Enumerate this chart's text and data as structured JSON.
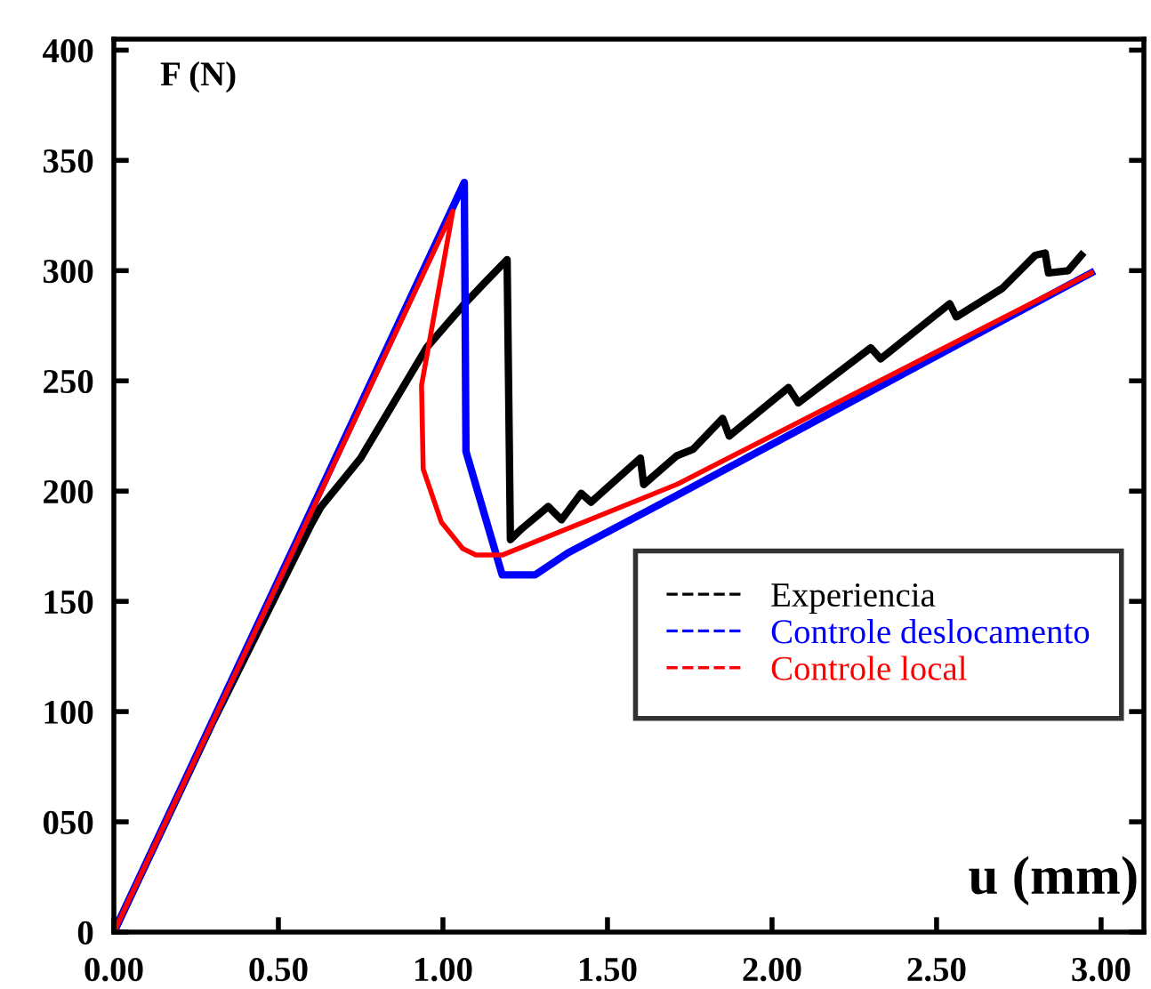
{
  "chart_data": {
    "type": "line",
    "xlabel": "u (mm)",
    "ylabel": "F (N)",
    "xlim": [
      0,
      3.13
    ],
    "ylim": [
      0,
      405
    ],
    "xticks": [
      {
        "value": 0,
        "label": "0.00"
      },
      {
        "value": 0.5,
        "label": "0.50"
      },
      {
        "value": 1,
        "label": "1.00"
      },
      {
        "value": 1.5,
        "label": "1.50"
      },
      {
        "value": 2,
        "label": "2.00"
      },
      {
        "value": 2.5,
        "label": "2.50"
      },
      {
        "value": 3,
        "label": "3.00"
      }
    ],
    "yticks": [
      0,
      {
        "value": 50,
        "label": "050"
      },
      100,
      150,
      200,
      250,
      300,
      350,
      400
    ],
    "grid": false,
    "legend": "bottom right",
    "series": [
      {
        "name": "Experiencia",
        "color": "#000000",
        "x": [
          0,
          0.3,
          0.6,
          0.63,
          0.75,
          0.85,
          0.95,
          1.06,
          1.13,
          1.195,
          1.205,
          1.24,
          1.32,
          1.36,
          1.42,
          1.45,
          1.6,
          1.61,
          1.71,
          1.76,
          1.85,
          1.87,
          2.05,
          2.08,
          2.3,
          2.33,
          2.54,
          2.56,
          2.7,
          2.8,
          2.83,
          2.84,
          2.9,
          2.94
        ],
        "values": [
          0,
          95,
          185,
          193,
          215,
          240,
          265,
          284,
          295,
          305,
          178,
          183,
          193,
          187,
          199,
          195,
          215,
          203,
          216,
          219,
          233,
          225,
          247,
          240,
          265,
          260,
          285,
          279,
          292,
          307,
          308,
          299,
          300,
          307
        ]
      },
      {
        "name": "Controle deslocamento",
        "color": "#0000ff",
        "x": [
          0,
          1.065,
          1.07,
          1.18,
          1.28,
          1.38,
          1.71,
          2.97
        ],
        "values": [
          0,
          340,
          218,
          162,
          162,
          172,
          198,
          299
        ]
      },
      {
        "name": "Controle local",
        "color": "#ff0000",
        "x": [
          0,
          1.03,
          0.935,
          0.94,
          0.995,
          1.06,
          1.1,
          1.18,
          1.71,
          2.97
        ],
        "values": [
          0,
          327,
          248,
          210,
          186,
          174,
          171,
          171,
          203,
          299
        ]
      }
    ]
  }
}
